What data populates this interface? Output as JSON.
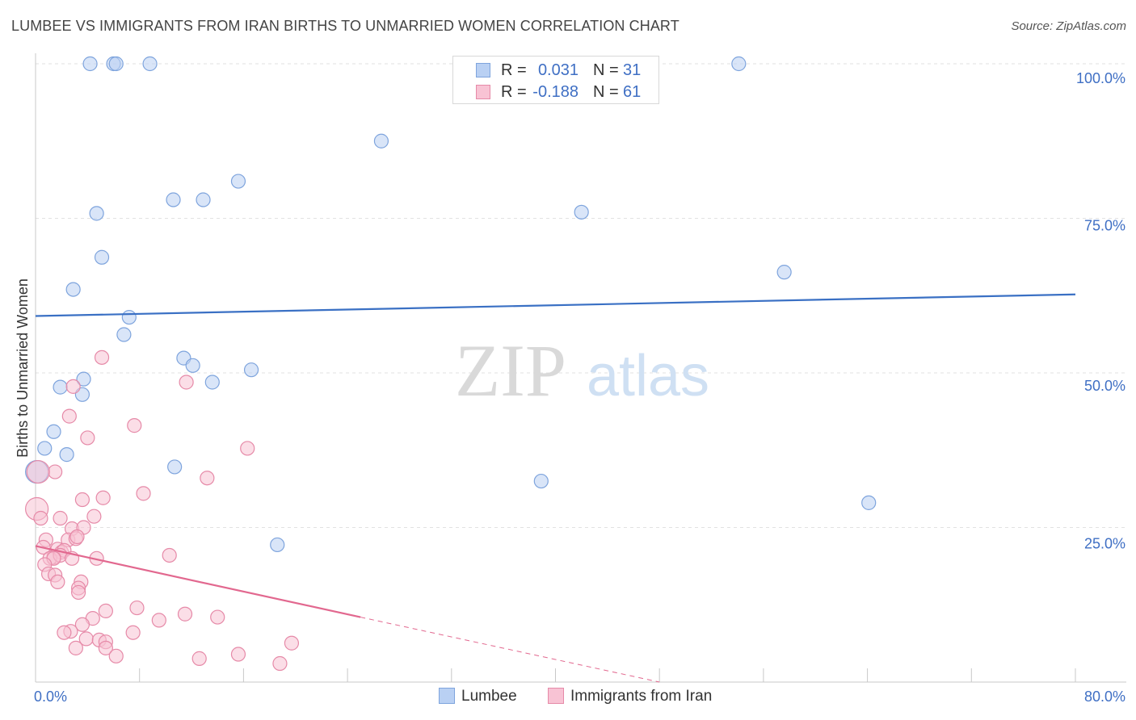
{
  "header": {
    "title": "LUMBEE VS IMMIGRANTS FROM IRAN BIRTHS TO UNMARRIED WOMEN CORRELATION CHART",
    "source": "Source: ZipAtlas.com"
  },
  "watermark": {
    "zip": "ZIP",
    "atlas": "atlas"
  },
  "legend_top": [
    {
      "r_label": "R =",
      "r_value": "0.031",
      "n_label": "N =",
      "n_value": "31"
    },
    {
      "r_label": "R =",
      "r_value": "-0.188",
      "n_label": "N =",
      "n_value": "61"
    }
  ],
  "colors": {
    "lumbee_fill": "#b9d0f3",
    "lumbee_stroke": "#7ea4dd",
    "lumbee_line": "#3a70c4",
    "iran_fill": "#f8c3d4",
    "iran_stroke": "#e68aa8",
    "iran_line": "#e2688f",
    "tick_text": "#3f6fc4",
    "grid": "#e2e2e2"
  },
  "chart_data": {
    "type": "scatter",
    "title": "LUMBEE VS IMMIGRANTS FROM IRAN BIRTHS TO UNMARRIED WOMEN CORRELATION CHART",
    "xlabel": "",
    "ylabel": "Births to Unmarried Women",
    "xlim": [
      0,
      80
    ],
    "ylim": [
      0,
      100
    ],
    "x_tick_labels": [
      "0.0%",
      "80.0%"
    ],
    "y_tick_labels": [
      "100.0%",
      "75.0%",
      "50.0%",
      "25.0%"
    ],
    "y_tick_values": [
      100,
      75,
      50,
      25
    ],
    "grid": true,
    "legend": "top-center",
    "series": [
      {
        "name": "Lumbee",
        "r": 0.031,
        "n": 31,
        "trend": {
          "x0": 0,
          "y0": 59.2,
          "x1": 80,
          "y1": 62.7
        },
        "points": [
          [
            4.2,
            100
          ],
          [
            6.0,
            100
          ],
          [
            6.2,
            100
          ],
          [
            8.8,
            100
          ],
          [
            54.1,
            100
          ],
          [
            26.6,
            87.5
          ],
          [
            15.6,
            81.0
          ],
          [
            10.6,
            78.0
          ],
          [
            12.9,
            78.0
          ],
          [
            4.7,
            75.8
          ],
          [
            42.0,
            76.0
          ],
          [
            5.1,
            68.7
          ],
          [
            57.6,
            66.3
          ],
          [
            2.9,
            63.5
          ],
          [
            7.2,
            59.0
          ],
          [
            6.8,
            56.2
          ],
          [
            11.4,
            52.4
          ],
          [
            12.1,
            51.2
          ],
          [
            16.6,
            50.5
          ],
          [
            13.6,
            48.5
          ],
          [
            3.7,
            49.0
          ],
          [
            1.9,
            47.7
          ],
          [
            3.6,
            46.5
          ],
          [
            1.4,
            40.5
          ],
          [
            0.7,
            37.8
          ],
          [
            2.4,
            36.8
          ],
          [
            10.7,
            34.8
          ],
          [
            38.9,
            32.5
          ],
          [
            64.1,
            29.0
          ],
          [
            18.6,
            22.2
          ],
          [
            0.1,
            34.0
          ]
        ]
      },
      {
        "name": "Immigrants from Iran",
        "r": -0.188,
        "n": 61,
        "trend": {
          "x0": 0,
          "y0": 22.0,
          "x1": 25,
          "y1": 10.5
        },
        "trend_dashed": {
          "x0": 25,
          "y0": 10.5,
          "x1": 48,
          "y1": 0
        },
        "points": [
          [
            5.1,
            52.5
          ],
          [
            11.6,
            48.5
          ],
          [
            2.9,
            47.8
          ],
          [
            2.6,
            43.0
          ],
          [
            7.6,
            41.5
          ],
          [
            4.0,
            39.5
          ],
          [
            16.3,
            37.8
          ],
          [
            1.5,
            34.0
          ],
          [
            13.2,
            33.0
          ],
          [
            8.3,
            30.5
          ],
          [
            3.6,
            29.5
          ],
          [
            5.2,
            29.8
          ],
          [
            0.1,
            28.0
          ],
          [
            4.5,
            26.8
          ],
          [
            0.4,
            26.5
          ],
          [
            1.9,
            26.5
          ],
          [
            2.8,
            24.8
          ],
          [
            3.7,
            25.0
          ],
          [
            2.5,
            23.0
          ],
          [
            0.8,
            23.0
          ],
          [
            3.1,
            23.2
          ],
          [
            3.2,
            23.5
          ],
          [
            0.6,
            21.8
          ],
          [
            1.7,
            21.5
          ],
          [
            2.0,
            21.0
          ],
          [
            2.2,
            21.3
          ],
          [
            1.4,
            20.2
          ],
          [
            1.1,
            20.0
          ],
          [
            1.9,
            20.5
          ],
          [
            1.4,
            20.0
          ],
          [
            2.8,
            20.0
          ],
          [
            4.7,
            20.0
          ],
          [
            10.3,
            20.5
          ],
          [
            0.7,
            19.0
          ],
          [
            1.0,
            17.5
          ],
          [
            1.5,
            17.3
          ],
          [
            1.7,
            16.2
          ],
          [
            3.5,
            16.2
          ],
          [
            3.3,
            15.2
          ],
          [
            3.3,
            14.5
          ],
          [
            5.4,
            11.5
          ],
          [
            7.8,
            12.0
          ],
          [
            11.5,
            11.0
          ],
          [
            14.0,
            10.5
          ],
          [
            4.4,
            10.3
          ],
          [
            9.5,
            10.0
          ],
          [
            3.6,
            9.3
          ],
          [
            2.7,
            8.2
          ],
          [
            7.5,
            8.0
          ],
          [
            2.2,
            8.0
          ],
          [
            3.9,
            7.0
          ],
          [
            4.9,
            6.8
          ],
          [
            5.4,
            6.5
          ],
          [
            19.7,
            6.3
          ],
          [
            3.1,
            5.5
          ],
          [
            5.4,
            5.5
          ],
          [
            15.6,
            4.5
          ],
          [
            6.2,
            4.2
          ],
          [
            12.6,
            3.8
          ],
          [
            18.8,
            3.0
          ],
          [
            0.2,
            34.0
          ]
        ]
      }
    ]
  },
  "legend_bottom": [
    {
      "label": "Lumbee"
    },
    {
      "label": "Immigrants from Iran"
    }
  ]
}
